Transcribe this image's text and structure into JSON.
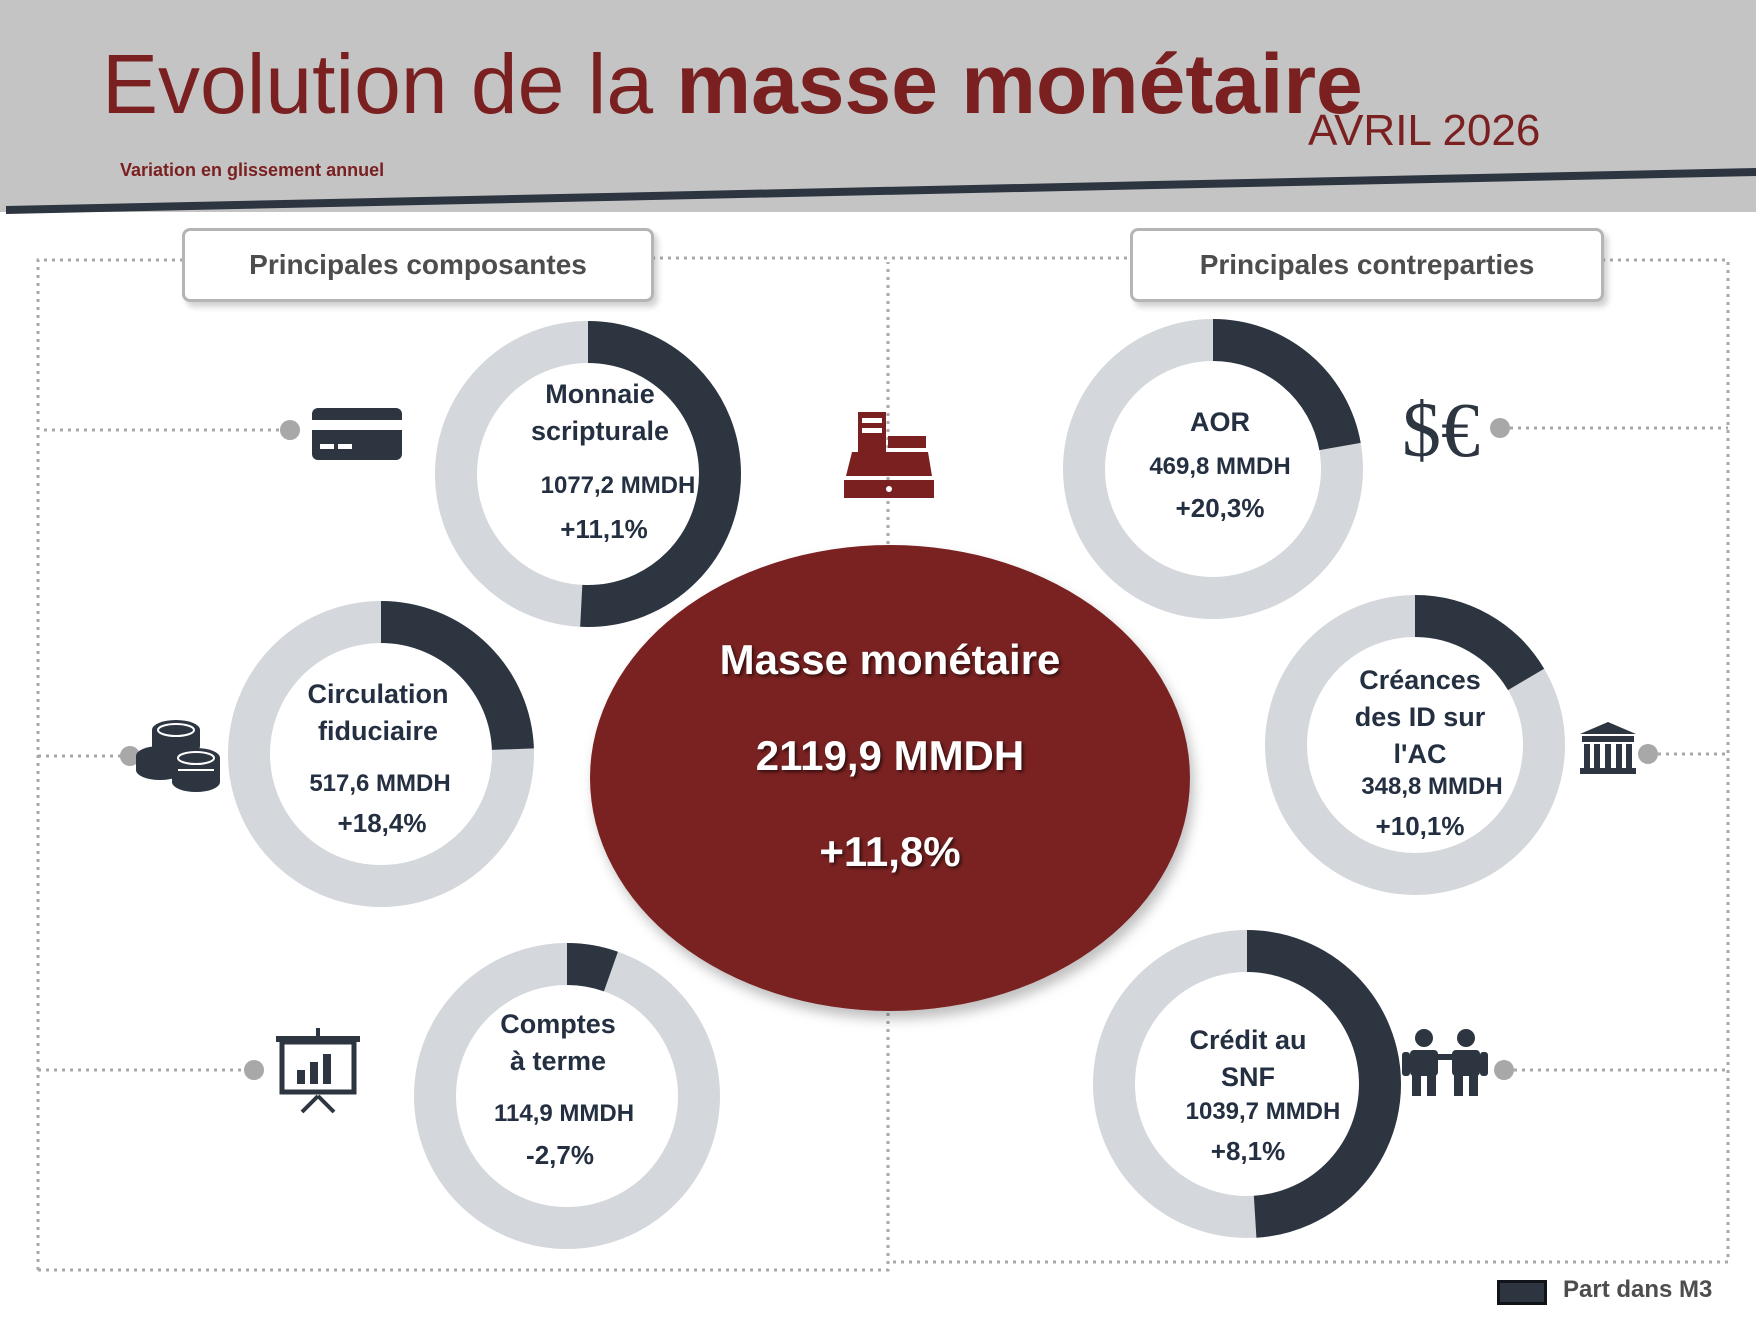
{
  "header": {
    "title_light": "Evolution de la ",
    "title_bold": "masse monétaire",
    "date": "AVRIL 2026",
    "subtitle": "Variation en glissement annuel"
  },
  "sections": {
    "left": "Principales composantes",
    "right": "Principales contreparties"
  },
  "center": {
    "name": "Masse monétaire",
    "value": "2119,9 MMDH",
    "change": "+11,8%"
  },
  "legend": {
    "label": "Part dans M3"
  },
  "colors": {
    "share": "#2d3540",
    "track": "#d4d7db",
    "center": "#7a2020",
    "text": "#243041"
  },
  "chart_data": {
    "type": "donut",
    "total": {
      "name": "Masse monétaire",
      "value": 2119.9,
      "unit": "MMDH",
      "change_pct": 11.8
    },
    "series": [
      {
        "name": "Monnaie scripturale",
        "value": 1077.2,
        "change_pct": 11.1,
        "share": 0.508,
        "value_label": "1077,2 MMDH",
        "change_label": "+11,1%",
        "group": "Principales composantes",
        "icon": "credit-card-icon"
      },
      {
        "name": "Circulation fiduciaire",
        "value": 517.6,
        "change_pct": 18.4,
        "share": 0.244,
        "value_label": "517,6 MMDH",
        "change_label": "+18,4%",
        "group": "Principales composantes",
        "icon": "coins-icon"
      },
      {
        "name": "Comptes à terme",
        "value": 114.9,
        "change_pct": -2.7,
        "share": 0.054,
        "value_label": "114,9 MMDH",
        "change_label": "-2,7%",
        "group": "Principales composantes",
        "icon": "presentation-chart-icon"
      },
      {
        "name": "AOR",
        "value": 469.8,
        "change_pct": 20.3,
        "share": 0.222,
        "value_label": "469,8 MMDH",
        "change_label": "+20,3%",
        "group": "Principales contreparties",
        "icon": "currency-icon"
      },
      {
        "name": "Créances des ID sur l'AC",
        "value": 348.8,
        "change_pct": 10.1,
        "share": 0.165,
        "value_label": "348,8 MMDH",
        "change_label": "+10,1%",
        "group": "Principales contreparties",
        "icon": "bank-icon"
      },
      {
        "name": "Crédit au SNF",
        "value": 1039.7,
        "change_pct": 8.1,
        "share": 0.49,
        "value_label": "1039,7 MMDH",
        "change_label": "+8,1%",
        "group": "Principales contreparties",
        "icon": "people-icon"
      }
    ]
  }
}
